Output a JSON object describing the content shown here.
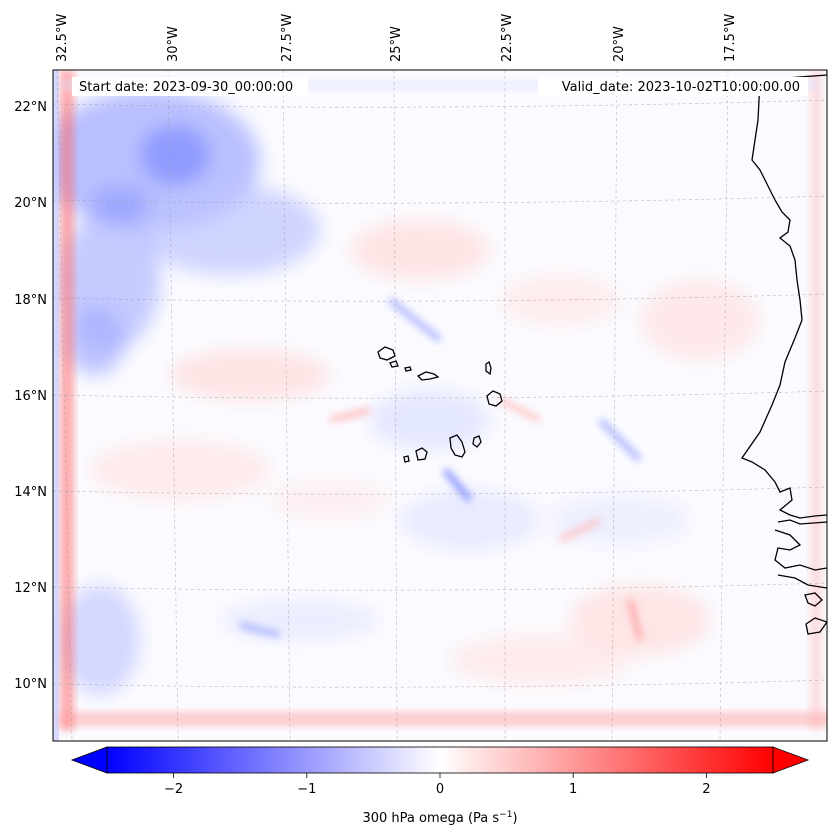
{
  "map": {
    "start_label": "Start date: 2023-09-30_00:00:00",
    "valid_label": "Valid_date: 2023-10-02T10:00:00.00",
    "lon_ticks": [
      "32.5°W",
      "30°W",
      "27.5°W",
      "25°W",
      "22.5°W",
      "20°W",
      "17.5°W"
    ],
    "lat_ticks": [
      "22°N",
      "20°N",
      "18°N",
      "16°N",
      "14°N",
      "12°N",
      "10°N"
    ],
    "lon_range_deg": [
      -32.7,
      -15.6
    ],
    "lat_range_deg": [
      8.9,
      22.8
    ],
    "grid": true,
    "layer": "300 hPa omega field over Cape Verde and the West African coast"
  },
  "colorbar": {
    "label_prefix": "300 hPa omega (Pa s",
    "label_exp": "−1",
    "label_suffix": ")",
    "ticks": [
      "−2",
      "−1",
      "0",
      "1",
      "2"
    ],
    "tick_values": [
      -2,
      -1,
      0,
      1,
      2
    ],
    "range": [
      -2.5,
      2.5
    ],
    "extend": "both",
    "colormap": "bwr",
    "low_color": "#0000ff",
    "mid_color": "#ffffff",
    "high_color": "#ff0000"
  }
}
